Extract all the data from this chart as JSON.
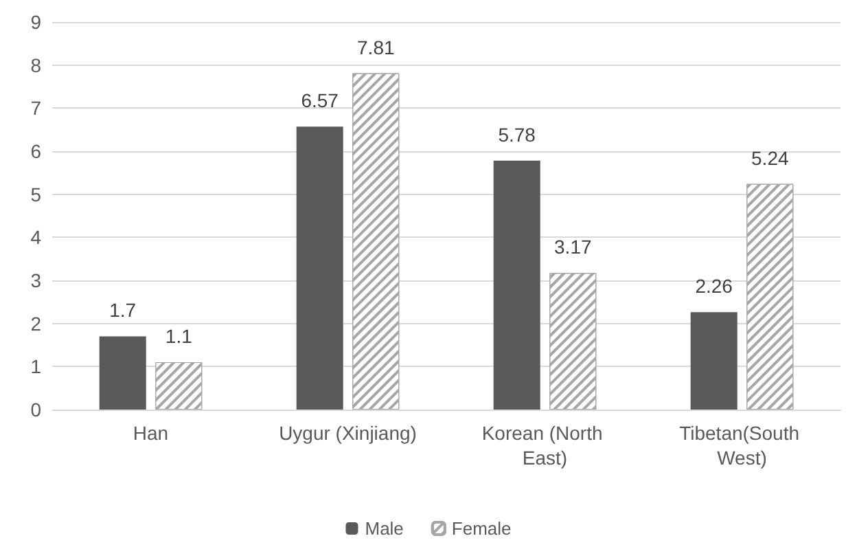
{
  "chart_data": {
    "type": "bar",
    "categories": [
      "Han",
      "Uygur (Xinjiang)",
      "Korean (North East)",
      "Tibetan(South West)"
    ],
    "series": [
      {
        "name": "Male",
        "color": "#595959",
        "values": [
          1.7,
          6.57,
          5.78,
          2.26
        ]
      },
      {
        "name": "Female",
        "color": "#a6a6a6",
        "values": [
          1.1,
          7.81,
          3.17,
          5.24
        ]
      }
    ],
    "ylim": [
      0,
      9
    ],
    "yticks": [
      0,
      1,
      2,
      3,
      4,
      5,
      6,
      7,
      8,
      9
    ],
    "grid": "y",
    "legend": "bottom",
    "data_labels": true
  }
}
